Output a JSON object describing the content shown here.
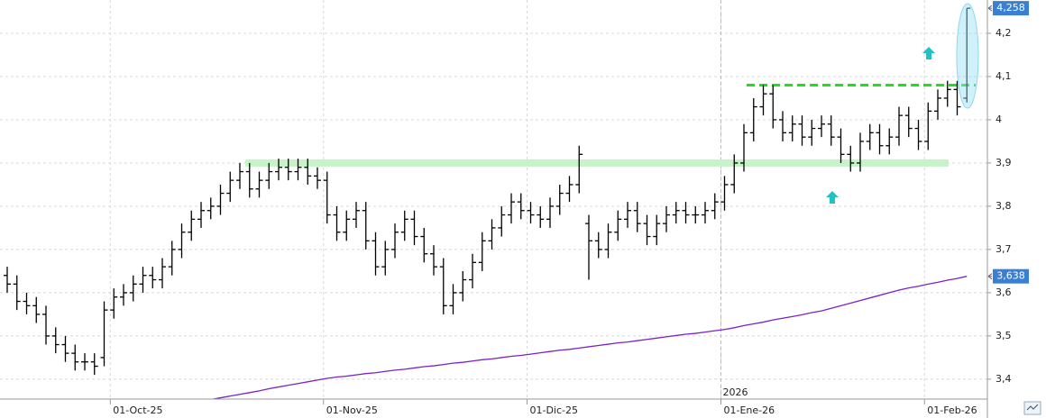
{
  "chart_data": {
    "type": "ohlc",
    "categories": [
      null,
      null,
      null,
      null,
      null,
      null,
      null,
      null,
      null,
      null,
      null,
      "01-Oct-25",
      null,
      null,
      null,
      null,
      null,
      null,
      null,
      null,
      null,
      null,
      null,
      null,
      null,
      null,
      null,
      null,
      null,
      null,
      null,
      null,
      null,
      "01-Nov-25",
      null,
      null,
      null,
      null,
      null,
      null,
      null,
      null,
      null,
      null,
      null,
      null,
      null,
      null,
      null,
      null,
      null,
      null,
      null,
      null,
      "01-Dic-25",
      null,
      null,
      null,
      null,
      null,
      null,
      null,
      null,
      null,
      null,
      null,
      null,
      null,
      null,
      null,
      null,
      null,
      null,
      null,
      "01-Ene-26",
      null,
      null,
      null,
      null,
      null,
      null,
      null,
      null,
      null,
      null,
      null,
      null,
      null,
      null,
      null,
      null,
      null,
      null,
      null,
      null,
      "01-Feb-26",
      null,
      null,
      null,
      null
    ],
    "open": [
      3.64,
      3.62,
      3.58,
      3.57,
      3.55,
      3.5,
      3.48,
      3.46,
      3.44,
      3.44,
      3.45,
      3.56,
      3.59,
      3.6,
      3.62,
      3.64,
      3.63,
      3.66,
      3.7,
      3.74,
      3.77,
      3.79,
      3.8,
      3.83,
      3.86,
      3.88,
      3.84,
      3.86,
      3.88,
      3.89,
      3.88,
      3.89,
      3.87,
      3.86,
      3.78,
      3.74,
      3.77,
      3.79,
      3.72,
      3.66,
      3.7,
      3.74,
      3.77,
      3.73,
      3.69,
      3.66,
      3.57,
      3.6,
      3.63,
      3.67,
      3.72,
      3.75,
      3.78,
      3.81,
      3.79,
      3.78,
      3.77,
      3.8,
      3.83,
      3.85,
      3.76,
      3.72,
      3.7,
      3.74,
      3.77,
      3.79,
      3.76,
      3.73,
      3.76,
      3.78,
      3.79,
      3.78,
      3.78,
      3.79,
      3.81,
      3.85,
      3.9,
      3.97,
      4.03,
      4.06,
      4.0,
      3.97,
      3.99,
      3.96,
      3.98,
      3.99,
      3.96,
      3.92,
      3.9,
      3.95,
      3.97,
      3.94,
      3.96,
      4.01,
      3.98,
      3.95,
      4.02,
      4.05,
      4.07,
      4.05
    ],
    "high": [
      3.66,
      3.64,
      3.6,
      3.59,
      3.57,
      3.52,
      3.5,
      3.48,
      3.46,
      3.46,
      3.58,
      3.61,
      3.62,
      3.64,
      3.66,
      3.66,
      3.68,
      3.72,
      3.76,
      3.79,
      3.81,
      3.82,
      3.85,
      3.88,
      3.9,
      3.9,
      3.88,
      3.9,
      3.91,
      3.91,
      3.91,
      3.91,
      3.89,
      3.88,
      3.8,
      3.79,
      3.81,
      3.81,
      3.74,
      3.72,
      3.76,
      3.79,
      3.79,
      3.75,
      3.71,
      3.68,
      3.62,
      3.65,
      3.69,
      3.74,
      3.77,
      3.8,
      3.83,
      3.83,
      3.81,
      3.8,
      3.82,
      3.85,
      3.87,
      3.94,
      3.78,
      3.74,
      3.76,
      3.79,
      3.81,
      3.81,
      3.78,
      3.78,
      3.8,
      3.81,
      3.81,
      3.8,
      3.81,
      3.83,
      3.87,
      3.92,
      3.99,
      4.05,
      4.08,
      4.08,
      4.02,
      4.01,
      4.01,
      4.0,
      4.01,
      4.01,
      3.98,
      3.94,
      3.97,
      3.99,
      3.99,
      3.98,
      4.03,
      4.03,
      4.0,
      4.04,
      4.07,
      4.09,
      4.09,
      4.258
    ],
    "low": [
      3.6,
      3.56,
      3.55,
      3.53,
      3.48,
      3.46,
      3.44,
      3.42,
      3.42,
      3.41,
      3.43,
      3.54,
      3.57,
      3.58,
      3.6,
      3.61,
      3.61,
      3.64,
      3.68,
      3.72,
      3.75,
      3.77,
      3.78,
      3.81,
      3.84,
      3.82,
      3.82,
      3.84,
      3.86,
      3.86,
      3.86,
      3.85,
      3.84,
      3.76,
      3.72,
      3.72,
      3.75,
      3.7,
      3.64,
      3.64,
      3.68,
      3.72,
      3.71,
      3.67,
      3.64,
      3.55,
      3.55,
      3.58,
      3.61,
      3.65,
      3.7,
      3.73,
      3.76,
      3.77,
      3.76,
      3.75,
      3.75,
      3.78,
      3.81,
      3.83,
      3.63,
      3.68,
      3.68,
      3.72,
      3.75,
      3.74,
      3.71,
      3.71,
      3.74,
      3.76,
      3.76,
      3.76,
      3.76,
      3.77,
      3.79,
      3.83,
      3.88,
      3.95,
      4.01,
      3.98,
      3.95,
      3.95,
      3.94,
      3.94,
      3.96,
      3.94,
      3.9,
      3.88,
      3.88,
      3.93,
      3.92,
      3.92,
      3.94,
      3.96,
      3.93,
      3.93,
      4.0,
      4.03,
      4.01,
      4.04
    ],
    "close": [
      3.62,
      3.58,
      3.57,
      3.55,
      3.5,
      3.48,
      3.46,
      3.44,
      3.44,
      3.43,
      3.56,
      3.59,
      3.6,
      3.62,
      3.64,
      3.63,
      3.66,
      3.7,
      3.74,
      3.77,
      3.79,
      3.8,
      3.83,
      3.86,
      3.88,
      3.84,
      3.86,
      3.88,
      3.89,
      3.88,
      3.89,
      3.87,
      3.86,
      3.78,
      3.74,
      3.77,
      3.79,
      3.72,
      3.66,
      3.7,
      3.74,
      3.77,
      3.73,
      3.69,
      3.66,
      3.57,
      3.6,
      3.63,
      3.67,
      3.72,
      3.75,
      3.78,
      3.81,
      3.79,
      3.78,
      3.77,
      3.8,
      3.83,
      3.85,
      3.92,
      3.72,
      3.7,
      3.74,
      3.77,
      3.79,
      3.76,
      3.73,
      3.76,
      3.78,
      3.79,
      3.78,
      3.78,
      3.79,
      3.81,
      3.85,
      3.9,
      3.97,
      4.03,
      4.06,
      4.0,
      3.97,
      3.99,
      3.96,
      3.98,
      3.99,
      3.96,
      3.92,
      3.9,
      3.95,
      3.97,
      3.94,
      3.96,
      4.01,
      3.98,
      3.95,
      4.02,
      4.05,
      4.07,
      4.03,
      4.258
    ],
    "close_label": "4,258",
    "color": "#000000",
    "ma": {
      "color": "#7b22c9",
      "values": [
        null,
        null,
        null,
        null,
        null,
        null,
        null,
        null,
        null,
        null,
        null,
        null,
        null,
        null,
        null,
        null,
        null,
        null,
        null,
        null,
        null,
        3.353,
        3.357,
        3.361,
        3.365,
        3.369,
        3.373,
        3.378,
        3.382,
        3.386,
        3.39,
        3.394,
        3.398,
        3.402,
        3.405,
        3.407,
        3.41,
        3.413,
        3.415,
        3.418,
        3.421,
        3.423,
        3.426,
        3.429,
        3.431,
        3.434,
        3.437,
        3.439,
        3.442,
        3.445,
        3.447,
        3.45,
        3.453,
        3.455,
        3.458,
        3.461,
        3.464,
        3.467,
        3.469,
        3.472,
        3.475,
        3.478,
        3.481,
        3.484,
        3.486,
        3.489,
        3.492,
        3.495,
        3.498,
        3.501,
        3.504,
        3.506,
        3.509,
        3.512,
        3.515,
        3.519,
        3.524,
        3.528,
        3.532,
        3.537,
        3.541,
        3.545,
        3.549,
        3.554,
        3.558,
        3.564,
        3.57,
        3.576,
        3.582,
        3.588,
        3.594,
        3.6,
        3.606,
        3.611,
        3.615,
        3.62,
        3.624,
        3.629,
        3.633,
        3.638
      ],
      "last_label": "3,638"
    },
    "levels": [
      {
        "value": 4.08,
        "color": "#22dd22",
        "style": "dashed"
      },
      {
        "value": 3.9,
        "color": "#c8f3c8",
        "style": "band"
      }
    ],
    "year_marker": "2026",
    "ylim": [
      3.354,
      4.277
    ],
    "yticks": [
      {
        "value": 3.4,
        "label": "3,4"
      },
      {
        "value": 3.5,
        "label": "3,5"
      },
      {
        "value": 3.6,
        "label": "3,6"
      },
      {
        "value": 3.7,
        "label": "3,7"
      },
      {
        "value": 3.8,
        "label": "3,8"
      },
      {
        "value": 3.9,
        "label": "3,9"
      },
      4,
      {
        "value": 4.1,
        "label": "4,1"
      },
      {
        "value": 4.2,
        "label": "4,2"
      }
    ],
    "grid": true
  }
}
